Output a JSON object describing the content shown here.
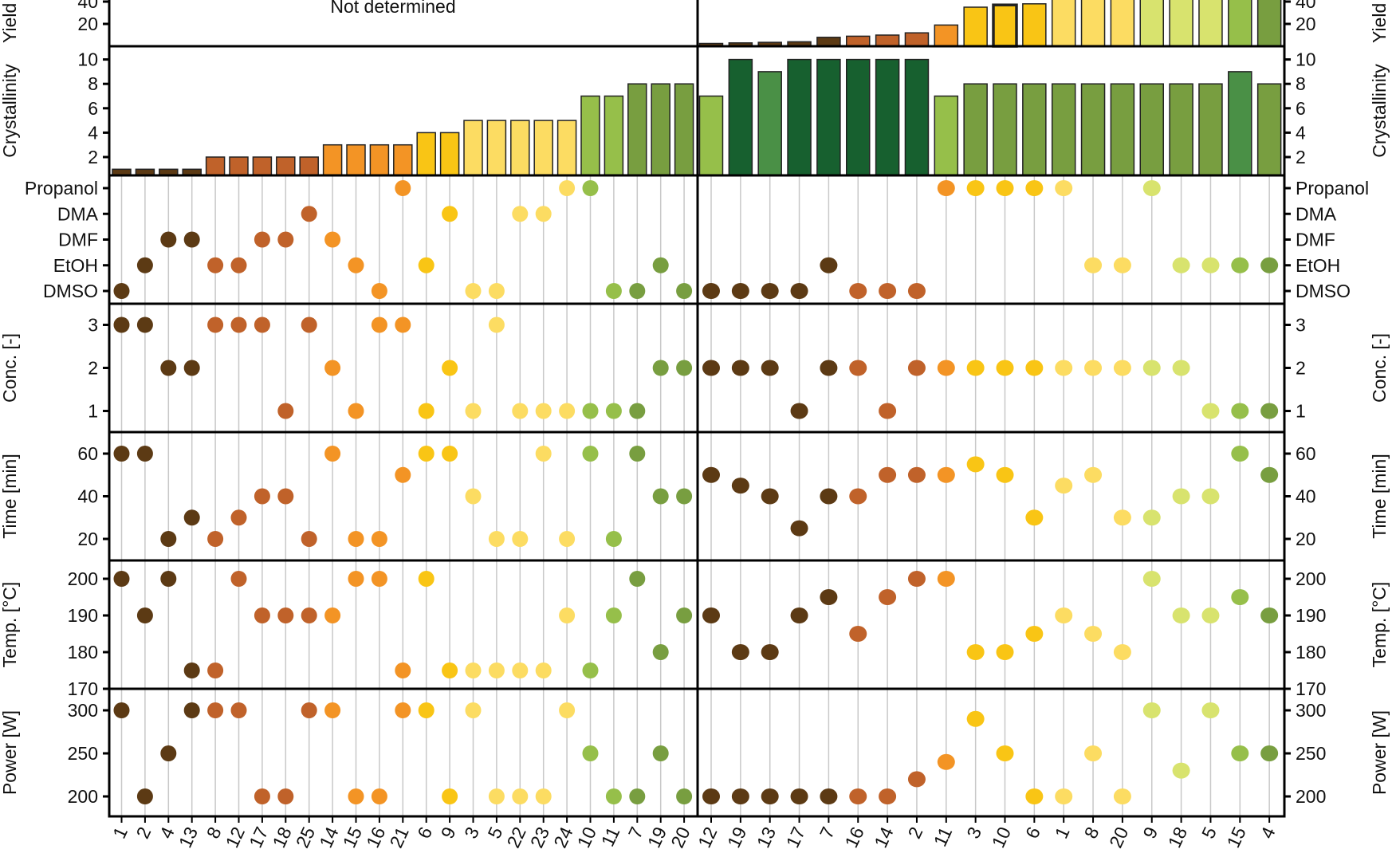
{
  "chart_data": {
    "type": "multi-panel bar + dot plot",
    "colors": {
      "c1": "#5c3a14",
      "c2": "#c0622a",
      "c3": "#f39425",
      "c4": "#f9c515",
      "c5": "#fcdc62",
      "yg": "#d8e36e",
      "c7": "#96bf4a",
      "c8": "#789e40",
      "c9": "#4a9046",
      "c10": "#17602f"
    },
    "groups": [
      {
        "samples": [
          "1",
          "2",
          "4",
          "13",
          "8",
          "12",
          "17",
          "18",
          "25",
          "14",
          "15",
          "16",
          "21",
          "6",
          "9",
          "3",
          "5",
          "22",
          "23",
          "24",
          "10",
          "11",
          "7",
          "19",
          "20"
        ],
        "colors": [
          "c1",
          "c1",
          "c1",
          "c1",
          "c2",
          "c2",
          "c2",
          "c2",
          "c2",
          "c3",
          "c3",
          "c3",
          "c3",
          "c4",
          "c4",
          "c5",
          "c5",
          "c5",
          "c5",
          "c5",
          "c7",
          "c7",
          "c8",
          "c8",
          "c8"
        ],
        "yield": null,
        "yield_note": "Not determined",
        "crystallinity": [
          1,
          1,
          1,
          1,
          2,
          2,
          2,
          2,
          2,
          3,
          3,
          3,
          3,
          4,
          4,
          5,
          5,
          5,
          5,
          5,
          7,
          7,
          8,
          8,
          8
        ],
        "crystallinity_colors": [
          "c1",
          "c1",
          "c1",
          "c1",
          "c2",
          "c2",
          "c2",
          "c2",
          "c2",
          "c3",
          "c3",
          "c3",
          "c3",
          "c4",
          "c4",
          "c5",
          "c5",
          "c5",
          "c5",
          "c5",
          "c7",
          "c7",
          "c8",
          "c8",
          "c8"
        ],
        "solvent": [
          "DMSO",
          "EtOH",
          "DMF",
          "DMF",
          "EtOH",
          "EtOH",
          "DMF",
          "DMF",
          "DMA",
          "DMF",
          "EtOH",
          "DMSO",
          "Propanol",
          "EtOH",
          "DMA",
          "DMSO",
          "DMSO",
          "DMA",
          "DMA",
          "Propanol",
          "Propanol",
          "DMSO",
          "DMSO",
          "EtOH",
          "DMSO"
        ],
        "conc": [
          3,
          3,
          2,
          2,
          3,
          3,
          3,
          1,
          3,
          2,
          1,
          3,
          3,
          1,
          2,
          1,
          3,
          1,
          1,
          1,
          1,
          1,
          1,
          2,
          2
        ],
        "time": [
          60,
          60,
          20,
          30,
          20,
          30,
          40,
          40,
          20,
          60,
          20,
          20,
          50,
          60,
          60,
          40,
          20,
          20,
          60,
          20,
          60,
          20,
          60,
          40,
          40
        ],
        "temp": [
          200,
          190,
          200,
          175,
          175,
          200,
          190,
          190,
          190,
          190,
          200,
          200,
          175,
          200,
          175,
          175,
          175,
          175,
          175,
          190,
          175,
          190,
          200,
          180,
          190
        ],
        "power": [
          300,
          200,
          250,
          300,
          300,
          300,
          200,
          200,
          300,
          300,
          200,
          200,
          300,
          300,
          200,
          300,
          200,
          200,
          200,
          300,
          250,
          200,
          200,
          250,
          200
        ]
      },
      {
        "samples": [
          "12",
          "19",
          "13",
          "17",
          "7",
          "16",
          "14",
          "2",
          "11",
          "3",
          "10",
          "6",
          "1",
          "8",
          "20",
          "9",
          "18",
          "5",
          "15",
          "4"
        ],
        "colors": [
          "c1",
          "c1",
          "c1",
          "c1",
          "c1",
          "c2",
          "c2",
          "c2",
          "c3",
          "c4",
          "c4",
          "c4",
          "c5",
          "c5",
          "c5",
          "yg",
          "yg",
          "yg",
          "c7",
          "c8"
        ],
        "yield": [
          2.5,
          3,
          3.5,
          4,
          8,
          9,
          10,
          12,
          19,
          35,
          37,
          38,
          45,
          45,
          45,
          45,
          45,
          45,
          45,
          45
        ],
        "yield_highlight": "10",
        "crystallinity": [
          7,
          10,
          9,
          10,
          10,
          10,
          10,
          10,
          7,
          8,
          8,
          8,
          8,
          8,
          8,
          8,
          8,
          8,
          9,
          8
        ],
        "crystallinity_colors": [
          "c7",
          "c10",
          "c9",
          "c10",
          "c10",
          "c10",
          "c10",
          "c10",
          "c7",
          "c8",
          "c8",
          "c8",
          "c8",
          "c8",
          "c8",
          "c8",
          "c8",
          "c8",
          "c9",
          "c8"
        ],
        "solvent": [
          "DMSO",
          "DMSO",
          "DMSO",
          "DMSO",
          "EtOH",
          "DMSO",
          "DMSO",
          "DMSO",
          "Propanol",
          "Propanol",
          "Propanol",
          "Propanol",
          "Propanol",
          "EtOH",
          "EtOH",
          "Propanol",
          "EtOH",
          "EtOH",
          "EtOH",
          "EtOH"
        ],
        "conc": [
          2,
          2,
          2,
          1,
          2,
          2,
          1,
          2,
          2,
          2,
          2,
          2,
          2,
          2,
          2,
          2,
          2,
          1,
          1,
          1
        ],
        "time": [
          50,
          45,
          40,
          25,
          40,
          40,
          50,
          50,
          50,
          55,
          50,
          30,
          45,
          50,
          30,
          30,
          40,
          40,
          60,
          50
        ],
        "temp": [
          190,
          180,
          180,
          190,
          195,
          185,
          195,
          200,
          200,
          180,
          180,
          185,
          190,
          185,
          180,
          200,
          190,
          190,
          195,
          190
        ],
        "power": [
          200,
          200,
          200,
          200,
          200,
          200,
          200,
          220,
          240,
          290,
          250,
          200,
          200,
          250,
          200,
          300,
          230,
          300,
          250,
          250
        ]
      }
    ],
    "panels": {
      "yield": {
        "ylabel": "Yield",
        "ticks": [
          "20",
          "40"
        ]
      },
      "crystallinity": {
        "ylabel": "Crystallinity",
        "ticks": [
          "2",
          "4",
          "6",
          "8",
          "10"
        ]
      },
      "solvent": {
        "ylabel": "",
        "categories": [
          "Propanol",
          "DMA",
          "DMF",
          "EtOH",
          "DMSO"
        ]
      },
      "conc": {
        "ylabel": "Conc. [-]",
        "ticks": [
          "1",
          "2",
          "3"
        ]
      },
      "time": {
        "ylabel": "Time [min]",
        "ticks": [
          "20",
          "40",
          "60"
        ]
      },
      "temp": {
        "ylabel": "Temp. [°C]",
        "ticks": [
          "170",
          "180",
          "190",
          "200"
        ]
      },
      "power": {
        "ylabel": "Power [W]",
        "ticks": [
          "200",
          "250",
          "300"
        ]
      }
    },
    "grid": "vertical lines per sample"
  }
}
